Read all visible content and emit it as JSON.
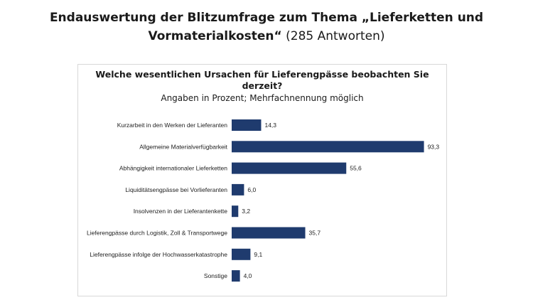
{
  "page": {
    "title_line1": "Endauswertung der Blitzumfrage zum Thema „Lieferketten und",
    "title_line2_bold": "Vormaterialkosten“",
    "title_line2_normal": " (285 Antworten)"
  },
  "chart_data": {
    "type": "bar",
    "orientation": "horizontal",
    "title_line1": "Welche wesentlichen Ursachen für Lieferengpässe beobachten Sie",
    "title_line2": "derzeit?",
    "subtitle": "Angaben in Prozent; Mehrfachnennung möglich",
    "categories": [
      "Kurzarbeit in den Werken der Lieferanten",
      "Allgemeine Materialverfügbarkeit",
      "Abhängigkeit internationaler Lieferketten",
      "Liquiditätsengpässe bei Vorlieferanten",
      "Insolvenzen in der Lieferantenkette",
      "Lieferengpässe durch Logistik, Zoll & Transportwege",
      "Lieferengpässe infolge der Hochwasserkatastrophe",
      "Sonstige"
    ],
    "values": [
      14.3,
      93.3,
      55.6,
      6.0,
      3.2,
      35.7,
      9.1,
      4.0
    ],
    "value_labels": [
      "14,3",
      "93,3",
      "55,6",
      "6,0",
      "3,2",
      "35,7",
      "9,1",
      "4,0"
    ],
    "xlim": [
      0,
      100
    ],
    "bar_color": "#1f3b6e",
    "grid": false,
    "legend": "none"
  }
}
